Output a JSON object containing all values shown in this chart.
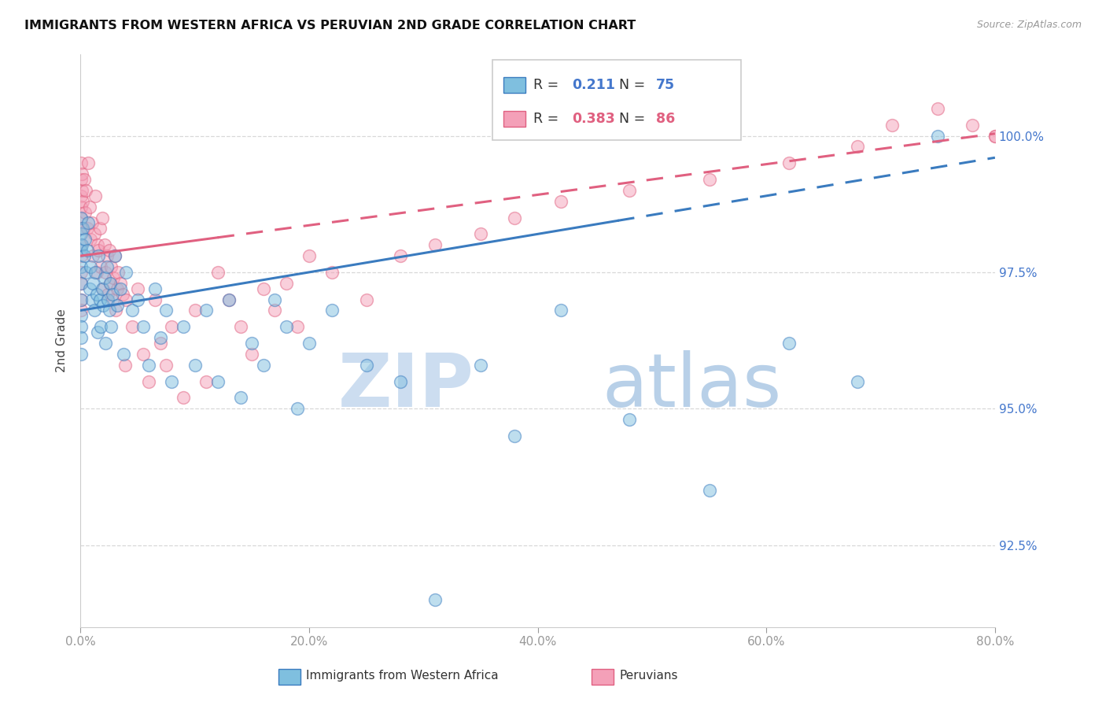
{
  "title": "IMMIGRANTS FROM WESTERN AFRICA VS PERUVIAN 2ND GRADE CORRELATION CHART",
  "source": "Source: ZipAtlas.com",
  "xlabel_blue": "Immigrants from Western Africa",
  "xlabel_pink": "Peruvians",
  "ylabel": "2nd Grade",
  "xmin": 0.0,
  "xmax": 80.0,
  "ymin": 91.0,
  "ymax": 101.5,
  "yticks": [
    92.5,
    95.0,
    97.5,
    100.0
  ],
  "xticks": [
    0.0,
    20.0,
    40.0,
    60.0,
    80.0
  ],
  "blue_R": 0.211,
  "blue_N": 75,
  "pink_R": 0.383,
  "pink_N": 86,
  "blue_color": "#7fbfdf",
  "pink_color": "#f4a0b8",
  "blue_line_color": "#3a7bbf",
  "pink_line_color": "#e06080",
  "watermark_zip_color": "#ccddf0",
  "watermark_atlas_color": "#b8d0e8",
  "background_color": "#ffffff",
  "blue_line_intercept": 96.8,
  "blue_line_slope": 0.035,
  "pink_line_intercept": 97.8,
  "pink_line_slope": 0.028,
  "blue_solid_end": 47,
  "pink_solid_end": 12,
  "blue_scatter_x": [
    0.05,
    0.05,
    0.05,
    0.05,
    0.05,
    0.05,
    0.05,
    0.05,
    0.05,
    0.05,
    0.1,
    0.2,
    0.3,
    0.4,
    0.5,
    0.6,
    0.7,
    0.8,
    0.9,
    1.0,
    1.1,
    1.2,
    1.3,
    1.4,
    1.5,
    1.6,
    1.7,
    1.8,
    1.9,
    2.0,
    2.1,
    2.2,
    2.3,
    2.4,
    2.5,
    2.6,
    2.7,
    2.8,
    3.0,
    3.2,
    3.5,
    3.8,
    4.0,
    4.5,
    5.0,
    5.5,
    6.0,
    6.5,
    7.0,
    7.5,
    8.0,
    9.0,
    10.0,
    11.0,
    12.0,
    13.0,
    14.0,
    15.0,
    16.0,
    17.0,
    18.0,
    19.0,
    20.0,
    22.0,
    25.0,
    28.0,
    31.0,
    35.0,
    38.0,
    42.0,
    48.0,
    55.0,
    62.0,
    68.0,
    75.0
  ],
  "blue_scatter_y": [
    98.5,
    98.2,
    97.9,
    97.6,
    97.3,
    97.0,
    96.7,
    96.5,
    96.3,
    96.0,
    98.0,
    98.3,
    97.8,
    98.1,
    97.5,
    97.9,
    98.4,
    97.2,
    97.6,
    97.0,
    97.3,
    96.8,
    97.5,
    97.1,
    96.4,
    97.8,
    97.0,
    96.5,
    97.2,
    96.9,
    97.4,
    96.2,
    97.6,
    97.0,
    96.8,
    97.3,
    96.5,
    97.1,
    97.8,
    96.9,
    97.2,
    96.0,
    97.5,
    96.8,
    97.0,
    96.5,
    95.8,
    97.2,
    96.3,
    96.8,
    95.5,
    96.5,
    95.8,
    96.8,
    95.5,
    97.0,
    95.2,
    96.2,
    95.8,
    97.0,
    96.5,
    95.0,
    96.2,
    96.8,
    95.8,
    95.5,
    91.5,
    95.8,
    94.5,
    96.8,
    94.8,
    93.5,
    96.2,
    95.5,
    100.0
  ],
  "pink_scatter_x": [
    0.05,
    0.05,
    0.05,
    0.05,
    0.05,
    0.05,
    0.05,
    0.05,
    0.05,
    0.05,
    0.05,
    0.05,
    0.1,
    0.15,
    0.2,
    0.3,
    0.4,
    0.5,
    0.6,
    0.7,
    0.8,
    0.9,
    1.0,
    1.1,
    1.2,
    1.3,
    1.4,
    1.5,
    1.6,
    1.7,
    1.8,
    1.9,
    2.0,
    2.1,
    2.2,
    2.3,
    2.4,
    2.5,
    2.6,
    2.7,
    2.8,
    2.9,
    3.0,
    3.1,
    3.2,
    3.3,
    3.5,
    3.7,
    3.9,
    4.0,
    4.5,
    5.0,
    5.5,
    6.0,
    6.5,
    7.0,
    7.5,
    8.0,
    9.0,
    10.0,
    11.0,
    12.0,
    13.0,
    14.0,
    15.0,
    16.0,
    17.0,
    18.0,
    19.0,
    20.0,
    22.0,
    25.0,
    28.0,
    31.0,
    35.0,
    38.0,
    42.0,
    48.0,
    55.0,
    62.0,
    68.0,
    71.0,
    75.0,
    78.0,
    80.0,
    80.0
  ],
  "pink_scatter_y": [
    99.5,
    99.2,
    98.9,
    98.7,
    98.5,
    98.3,
    98.0,
    97.8,
    97.5,
    97.3,
    97.0,
    96.8,
    99.0,
    99.3,
    98.8,
    99.2,
    98.6,
    99.0,
    98.3,
    99.5,
    98.7,
    98.1,
    98.4,
    97.8,
    98.2,
    98.9,
    97.5,
    98.0,
    97.9,
    98.3,
    97.6,
    98.5,
    97.2,
    98.0,
    97.5,
    97.8,
    97.1,
    97.9,
    97.3,
    97.6,
    97.0,
    97.4,
    97.8,
    96.8,
    97.2,
    97.5,
    97.3,
    97.1,
    95.8,
    97.0,
    96.5,
    97.2,
    96.0,
    95.5,
    97.0,
    96.2,
    95.8,
    96.5,
    95.2,
    96.8,
    95.5,
    97.5,
    97.0,
    96.5,
    96.0,
    97.2,
    96.8,
    97.3,
    96.5,
    97.8,
    97.5,
    97.0,
    97.8,
    98.0,
    98.2,
    98.5,
    98.8,
    99.0,
    99.2,
    99.5,
    99.8,
    100.2,
    100.5,
    100.2,
    100.0,
    100.0
  ]
}
